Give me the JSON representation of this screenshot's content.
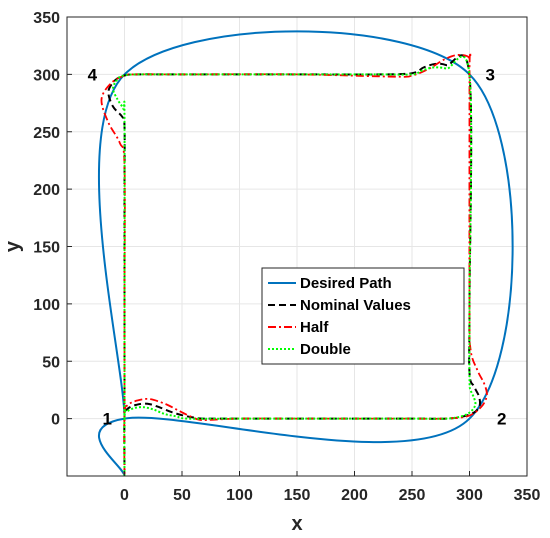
{
  "chart_data": {
    "type": "line",
    "title": "",
    "xlabel": "x",
    "ylabel": "y",
    "xlim": [
      -50,
      350
    ],
    "ylim": [
      -50,
      350
    ],
    "xticks": [
      0,
      50,
      100,
      150,
      200,
      250,
      300,
      350
    ],
    "yticks": [
      0,
      50,
      100,
      150,
      200,
      250,
      300,
      350
    ],
    "grid": true,
    "legend_position": "center-right",
    "corner_labels": [
      {
        "text": "1",
        "x": -15,
        "y": 0
      },
      {
        "text": "2",
        "x": 328,
        "y": 0
      },
      {
        "text": "3",
        "x": 318,
        "y": 300
      },
      {
        "text": "4",
        "x": -28,
        "y": 300
      }
    ],
    "series": [
      {
        "name": "Desired Path",
        "color": "#0072BD",
        "style": "solid",
        "x": [
          0,
          0,
          300,
          300,
          0,
          0
        ],
        "y": [
          -50,
          0,
          0,
          300,
          300,
          0
        ]
      },
      {
        "name": "Nominal Values",
        "color": "#000000",
        "style": "dashed",
        "x": [
          0,
          0,
          2,
          10,
          20,
          30,
          40,
          50,
          60,
          70,
          100,
          150,
          200,
          250,
          280,
          295,
          305,
          309,
          308,
          304,
          300,
          300,
          300,
          280,
          270,
          260,
          250,
          220,
          150,
          50,
          10,
          0,
          -8,
          -14,
          -10,
          -2,
          0,
          0,
          0,
          0
        ],
        "y": [
          -50,
          2,
          8,
          12,
          13,
          10,
          6,
          3,
          1,
          0,
          0,
          0,
          0,
          0,
          0,
          2,
          6,
          12,
          20,
          28,
          40,
          100,
          299,
          308,
          309,
          306,
          301,
          300,
          300,
          300,
          300,
          299,
          295,
          285,
          272,
          263,
          255,
          200,
          100,
          0
        ]
      },
      {
        "name": "Half",
        "color": "#FF0000",
        "style": "dashdot",
        "x": [
          0,
          0,
          3,
          12,
          22,
          35,
          45,
          55,
          65,
          75,
          100,
          150,
          200,
          250,
          275,
          298,
          310,
          315,
          313,
          307,
          301,
          300,
          300,
          300,
          290,
          278,
          265,
          250,
          235,
          150,
          50,
          10,
          0,
          -12,
          -20,
          -14,
          -4,
          0,
          0,
          0
        ],
        "y": [
          -50,
          3,
          12,
          16,
          17,
          13,
          8,
          3,
          -1,
          -1,
          0,
          0,
          0,
          0,
          0,
          2,
          10,
          20,
          30,
          42,
          60,
          100,
          299,
          314,
          317,
          313,
          305,
          299,
          298,
          300,
          300,
          300,
          299,
          292,
          278,
          258,
          240,
          220,
          100,
          0
        ]
      },
      {
        "name": "Double",
        "color": "#00FF00",
        "style": "dotted",
        "x": [
          0,
          0,
          2,
          8,
          16,
          25,
          35,
          45,
          55,
          100,
          150,
          200,
          250,
          280,
          293,
          301,
          305,
          304,
          301,
          300,
          300,
          300,
          280,
          268,
          258,
          250,
          220,
          150,
          50,
          10,
          0,
          -5,
          -10,
          -6,
          -1,
          0,
          0,
          0
        ],
        "y": [
          -50,
          1,
          6,
          9,
          10,
          8,
          4,
          2,
          0,
          0,
          0,
          0,
          0,
          0,
          2,
          6,
          12,
          18,
          25,
          35,
          100,
          299,
          305,
          306,
          303,
          300,
          300,
          300,
          300,
          300,
          299,
          297,
          288,
          278,
          270,
          262,
          100,
          0
        ]
      }
    ]
  }
}
